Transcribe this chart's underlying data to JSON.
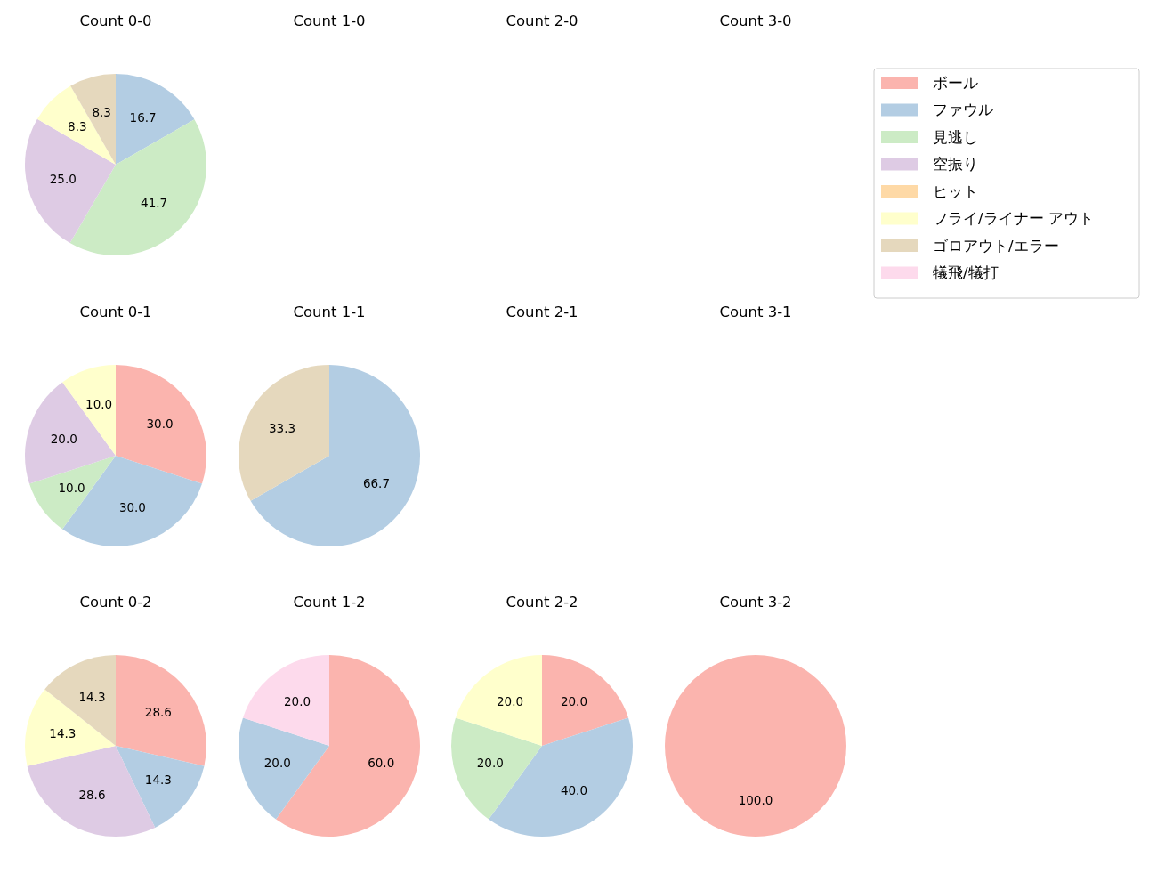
{
  "chart_data": [
    {
      "type": "pie",
      "title": "Count 0-0",
      "legend": "right",
      "categories": [
        "ボール",
        "ファウル",
        "見逃し",
        "空振り",
        "ヒット",
        "フライ/ライナー アウト",
        "ゴロアウト/エラー",
        "犠飛/犠打"
      ],
      "colors": [
        "#fbb4ae",
        "#b3cde3",
        "#ccebc5",
        "#decbe4",
        "#fed9a6",
        "#ffffcc",
        "#e5d8bd",
        "#fddaec"
      ],
      "values": [
        null,
        16.7,
        41.7,
        25.0,
        null,
        8.3,
        8.3,
        null
      ],
      "value_labels": [
        null,
        "16.7",
        "41.7",
        "25.0",
        null,
        "8.3",
        "8.3",
        null
      ]
    },
    {
      "type": "other",
      "title": "Count 1-0"
    },
    {
      "type": "other",
      "title": "Count 2-0"
    },
    {
      "type": "other",
      "title": "Count 3-0"
    },
    {
      "type": "pie",
      "title": "Count 0-1",
      "categories": [
        null,
        null,
        null,
        null,
        null
      ],
      "colors": [
        "#fbb4ae",
        "#b3cde3",
        "#ccebc5",
        "#decbe4",
        "#ffffcc"
      ],
      "values": [
        30.0,
        30.0,
        10.0,
        20.0,
        10.0
      ],
      "value_labels": [
        "30.0",
        "30.0",
        "10.0",
        "20.0",
        "10.0"
      ]
    },
    {
      "type": "pie",
      "title": "Count 1-1",
      "categories": [
        null,
        null
      ],
      "colors": [
        "#b3cde3",
        "#e5d8bd"
      ],
      "values": [
        66.7,
        33.3
      ],
      "value_labels": [
        "66.7",
        "33.3"
      ]
    },
    {
      "type": "other",
      "title": "Count 2-1"
    },
    {
      "type": "other",
      "title": "Count 3-1"
    },
    {
      "type": "pie",
      "title": "Count 0-2",
      "categories": [
        null,
        null,
        null,
        null,
        null
      ],
      "colors": [
        "#fbb4ae",
        "#b3cde3",
        "#decbe4",
        "#ffffcc",
        "#e5d8bd"
      ],
      "values": [
        28.6,
        14.3,
        28.6,
        14.3,
        14.3
      ],
      "value_labels": [
        "28.6",
        "14.3",
        "28.6",
        "14.3",
        "14.3"
      ]
    },
    {
      "type": "pie",
      "title": "Count 1-2",
      "categories": [
        null,
        null,
        null
      ],
      "colors": [
        "#fbb4ae",
        "#b3cde3",
        "#fddaec"
      ],
      "values": [
        60.0,
        20.0,
        20.0
      ],
      "value_labels": [
        "60.0",
        "20.0",
        "20.0"
      ]
    },
    {
      "type": "pie",
      "title": "Count 2-2",
      "categories": [
        null,
        null,
        null,
        null
      ],
      "colors": [
        "#fbb4ae",
        "#b3cde3",
        "#ccebc5",
        "#ffffcc"
      ],
      "values": [
        20.0,
        40.0,
        20.0,
        20.0
      ],
      "value_labels": [
        "20.0",
        "40.0",
        "20.0",
        "20.0"
      ]
    },
    {
      "type": "pie",
      "title": "Count 3-2",
      "categories": [
        null
      ],
      "colors": [
        "#fbb4ae"
      ],
      "values": [
        100.0
      ],
      "value_labels": [
        "100.0"
      ]
    }
  ]
}
